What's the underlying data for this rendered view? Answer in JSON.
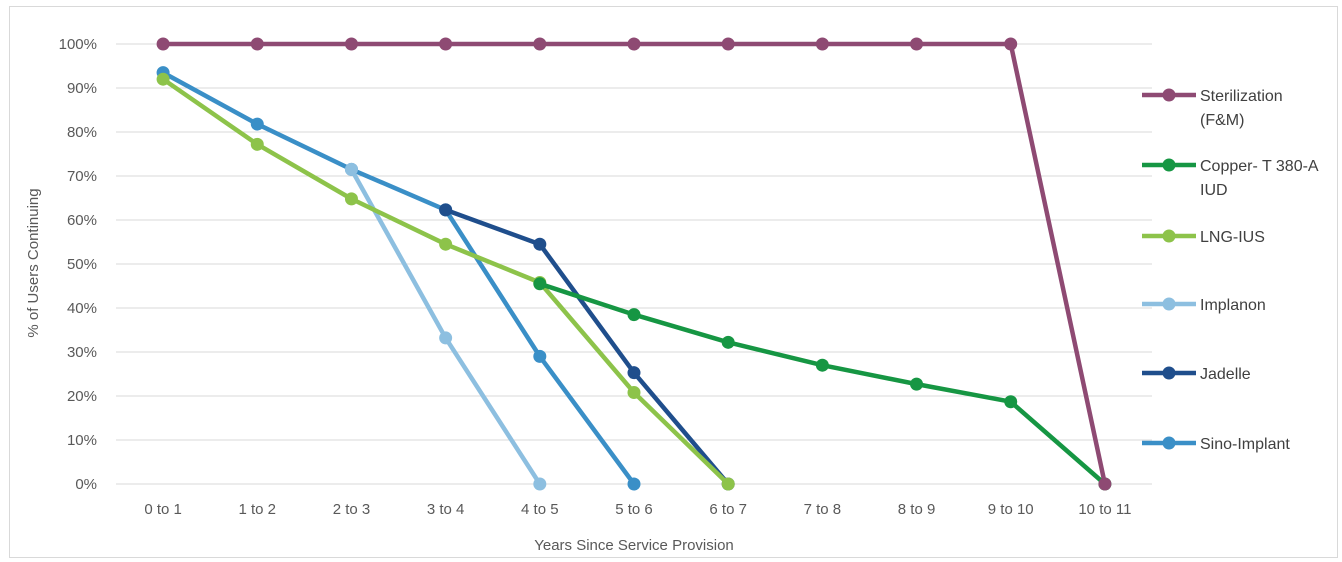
{
  "chart_data": {
    "type": "line",
    "title": "",
    "xlabel": "Years Since Service Provision",
    "ylabel": "% of Users Continuing",
    "categories": [
      "0 to 1",
      "1 to 2",
      "2 to 3",
      "3 to 4",
      "4 to 5",
      "5 to 6",
      "6 to 7",
      "7 to 8",
      "8 to 9",
      "9 to 10",
      "10 to 11"
    ],
    "yticks": [
      "0%",
      "10%",
      "20%",
      "30%",
      "40%",
      "50%",
      "60%",
      "70%",
      "80%",
      "90%",
      "100%"
    ],
    "ylim": [
      0,
      100
    ],
    "grid": true,
    "legend_position": "right",
    "series": [
      {
        "name": "Sterilization (F&M)",
        "legend_lines": [
          "Sterilization",
          "(F&M)"
        ],
        "color": "#8e4a73",
        "values": [
          100,
          100,
          100,
          100,
          100,
          100,
          100,
          100,
          100,
          100,
          0
        ]
      },
      {
        "name": "Copper- T 380-A IUD",
        "legend_lines": [
          "Copper- T 380-A",
          "IUD"
        ],
        "color": "#169643",
        "values": [
          null,
          null,
          null,
          null,
          45.5,
          38.5,
          32.2,
          27,
          22.7,
          18.7,
          0
        ]
      },
      {
        "name": "LNG-IUS",
        "legend_lines": [
          "LNG-IUS"
        ],
        "color": "#8dc34a",
        "values": [
          92,
          77.2,
          64.8,
          54.5,
          45.8,
          20.8,
          0,
          null,
          null,
          null,
          null
        ]
      },
      {
        "name": "Implanon",
        "legend_lines": [
          "Implanon"
        ],
        "color": "#8dbfe0",
        "values": [
          null,
          null,
          71.5,
          33.2,
          0,
          null,
          null,
          null,
          null,
          null,
          null
        ]
      },
      {
        "name": "Jadelle",
        "legend_lines": [
          "Jadelle"
        ],
        "color": "#1f4e8c",
        "values": [
          null,
          null,
          null,
          62.3,
          54.5,
          25.3,
          0,
          null,
          null,
          null,
          null
        ]
      },
      {
        "name": "Sino-Implant",
        "legend_lines": [
          "Sino-Implant"
        ],
        "color": "#3a8fc7",
        "values": [
          93.5,
          81.8,
          71.5,
          62.3,
          29,
          0,
          null,
          null,
          null,
          null,
          null
        ]
      }
    ]
  }
}
